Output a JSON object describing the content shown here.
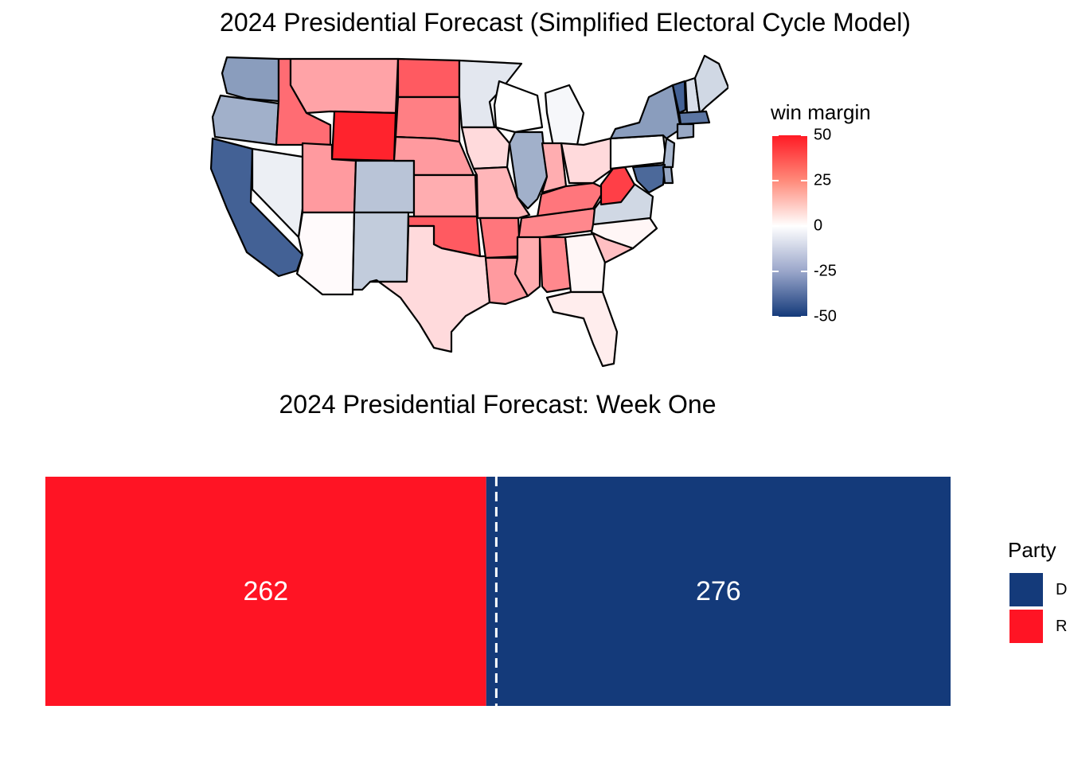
{
  "map": {
    "title": "2024 Presidential Forecast (Simplified Electoral Cycle Model)",
    "legend_title": "win margin",
    "scale_domain": [
      -50,
      50
    ],
    "scale_ticks": [
      "50",
      "25",
      "0",
      "-25",
      "-50"
    ],
    "scale_tick_values": [
      50,
      25,
      0,
      -25,
      -50
    ],
    "colors": {
      "low": "#143a7a",
      "mid": "#ffffff",
      "high": "#ff1a24"
    }
  },
  "chart_data": [
    {
      "type": "heatmap",
      "title": "2024 Presidential Forecast (Simplified Electoral Cycle Model)",
      "legend_title": "win margin",
      "zlim": [
        -50,
        50
      ],
      "regions": [
        {
          "state": "WA",
          "margin": -25
        },
        {
          "state": "OR",
          "margin": -20
        },
        {
          "state": "CA",
          "margin": -40
        },
        {
          "state": "NV",
          "margin": -4
        },
        {
          "state": "ID",
          "margin": 32
        },
        {
          "state": "MT",
          "margin": 20
        },
        {
          "state": "WY",
          "margin": 48
        },
        {
          "state": "UT",
          "margin": 22
        },
        {
          "state": "AZ",
          "margin": 1
        },
        {
          "state": "CO",
          "margin": -15
        },
        {
          "state": "NM",
          "margin": -13
        },
        {
          "state": "ND",
          "margin": 36
        },
        {
          "state": "SD",
          "margin": 28
        },
        {
          "state": "NE",
          "margin": 22
        },
        {
          "state": "KS",
          "margin": 18
        },
        {
          "state": "OK",
          "margin": 36
        },
        {
          "state": "TX",
          "margin": 8
        },
        {
          "state": "MN",
          "margin": -6
        },
        {
          "state": "IA",
          "margin": 8
        },
        {
          "state": "MO",
          "margin": 16
        },
        {
          "state": "AR",
          "margin": 30
        },
        {
          "state": "LA",
          "margin": 22
        },
        {
          "state": "WI",
          "margin": 0
        },
        {
          "state": "IL",
          "margin": -20
        },
        {
          "state": "MI",
          "margin": -2
        },
        {
          "state": "IN",
          "margin": 18
        },
        {
          "state": "OH",
          "margin": 8
        },
        {
          "state": "KY",
          "margin": 30
        },
        {
          "state": "TN",
          "margin": 26
        },
        {
          "state": "MS",
          "margin": 18
        },
        {
          "state": "AL",
          "margin": 26
        },
        {
          "state": "GA",
          "margin": 2
        },
        {
          "state": "FL",
          "margin": 4
        },
        {
          "state": "SC",
          "margin": 14
        },
        {
          "state": "NC",
          "margin": 2
        },
        {
          "state": "VA",
          "margin": -10
        },
        {
          "state": "WV",
          "margin": 42
        },
        {
          "state": "PA",
          "margin": 0
        },
        {
          "state": "NY",
          "margin": -25
        },
        {
          "state": "VT",
          "margin": -40
        },
        {
          "state": "NH",
          "margin": -8
        },
        {
          "state": "ME",
          "margin": -10
        },
        {
          "state": "MA",
          "margin": -35
        },
        {
          "state": "CT",
          "margin": -22
        },
        {
          "state": "NJ",
          "margin": -18
        },
        {
          "state": "MD",
          "margin": -38
        },
        {
          "state": "DE",
          "margin": -22
        }
      ]
    },
    {
      "type": "bar",
      "orientation": "horizontal-stacked",
      "title": "2024 Presidential Forecast: Week One",
      "categories": [
        "R",
        "D"
      ],
      "values": [
        262,
        276
      ],
      "total": 538,
      "threshold_line": 270,
      "colors": {
        "D": "#143a7a",
        "R": "#ff1424"
      },
      "legend_title": "Party",
      "legend_entries": [
        "D",
        "R"
      ],
      "legend_position": "right"
    }
  ],
  "bar": {
    "title": "2024 Presidential Forecast: Week One",
    "r_label": "262",
    "d_label": "276",
    "legend_title": "Party",
    "legend_d": "D",
    "legend_r": "R"
  }
}
